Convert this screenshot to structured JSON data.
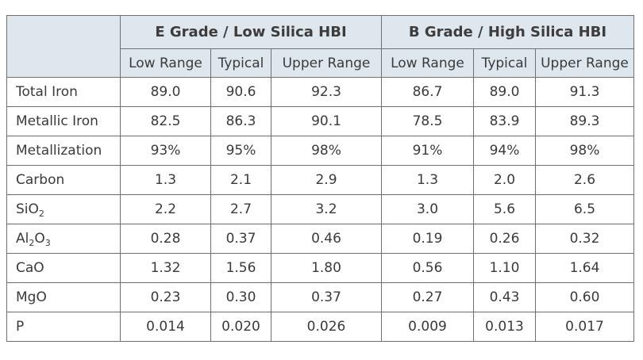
{
  "groups": [
    {
      "title": "E Grade / Low Silica HBI"
    },
    {
      "title": "B Grade / High Silica HBI"
    }
  ],
  "columns": [
    "Low Range",
    "Typical",
    "Upper Range",
    "Low Range",
    "Typical",
    "Upper Range"
  ],
  "rows": [
    {
      "label": "Total Iron",
      "values": [
        "89.0",
        "90.6",
        "92.3",
        "86.7",
        "89.0",
        "91.3"
      ]
    },
    {
      "label": "Metallic Iron",
      "values": [
        "82.5",
        "86.3",
        "90.1",
        "78.5",
        "83.9",
        "89.3"
      ]
    },
    {
      "label": "Metallization",
      "values": [
        "93%",
        "95%",
        "98%",
        "91%",
        "94%",
        "98%"
      ]
    },
    {
      "label": "Carbon",
      "values": [
        "1.3",
        "2.1",
        "2.9",
        "1.3",
        "2.0",
        "2.6"
      ]
    },
    {
      "label": "SiO2",
      "label_parts": {
        "a": "SiO",
        "a_sub": "2"
      },
      "values": [
        "2.2",
        "2.7",
        "3.2",
        "3.0",
        "5.6",
        "6.5"
      ]
    },
    {
      "label": "Al2O3",
      "label_parts": {
        "a": "Al",
        "a_sub": "2",
        "b": "O",
        "b_sub": "3"
      },
      "values": [
        "0.28",
        "0.37",
        "0.46",
        "0.19",
        "0.26",
        "0.32"
      ]
    },
    {
      "label": "CaO",
      "values": [
        "1.32",
        "1.56",
        "1.80",
        "0.56",
        "1.10",
        "1.64"
      ]
    },
    {
      "label": "MgO",
      "values": [
        "0.23",
        "0.30",
        "0.37",
        "0.27",
        "0.43",
        "0.60"
      ]
    },
    {
      "label": "P",
      "values": [
        "0.014",
        "0.020",
        "0.026",
        "0.009",
        "0.013",
        "0.017"
      ]
    }
  ],
  "colors": {
    "header_bg": "#dfe7ee",
    "border": "#6f6f6f",
    "text": "#3a3a3a"
  }
}
